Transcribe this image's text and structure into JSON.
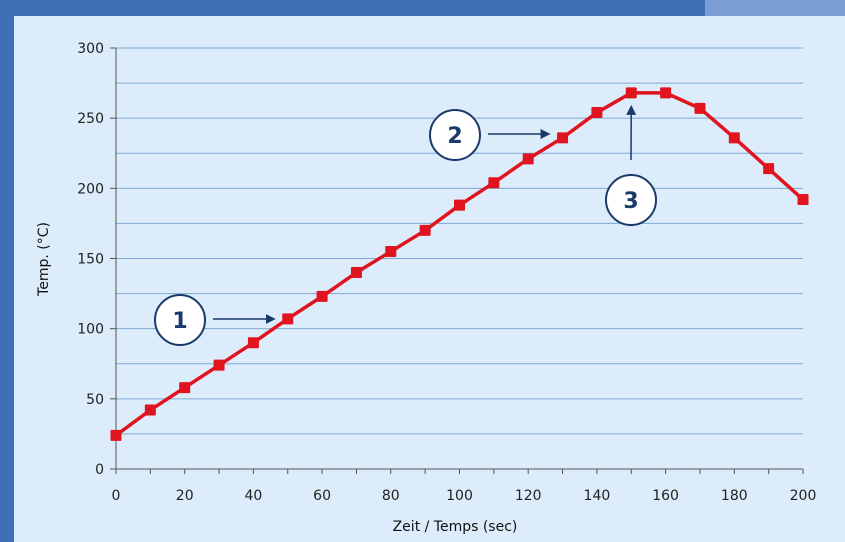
{
  "chart_data": {
    "type": "line",
    "title": "",
    "xlabel": "Zeit / Temps (sec)",
    "ylabel": "Temp. (°C)",
    "xlim": [
      0,
      200
    ],
    "ylim": [
      0,
      300
    ],
    "xticks": [
      0,
      20,
      40,
      60,
      80,
      100,
      120,
      140,
      160,
      180,
      200
    ],
    "yticks": [
      0,
      50,
      100,
      150,
      200,
      250,
      300
    ],
    "grid": true,
    "legend": "none",
    "series": [
      {
        "color": "#e0141e",
        "x": [
          0,
          10,
          20,
          30,
          40,
          50,
          60,
          70,
          80,
          90,
          100,
          110,
          120,
          130,
          140,
          150,
          160,
          170,
          180,
          190,
          200
        ],
        "y": [
          24,
          42,
          58,
          74,
          90,
          107,
          123,
          140,
          155,
          170,
          188,
          204,
          221,
          236,
          254,
          268,
          268,
          257,
          236,
          214,
          192
        ]
      }
    ],
    "annotations": [
      {
        "label": "1",
        "points_to": [
          50,
          107
        ]
      },
      {
        "label": "2",
        "points_to": [
          130,
          236
        ]
      },
      {
        "label": "3",
        "points_to": [
          150,
          268
        ]
      }
    ]
  },
  "colors": {
    "background": "#3f6fb5",
    "plot_bg": "#dcecfa",
    "grid": "#7fa8d8",
    "line": "#e0141e",
    "callout": "#1a3a6b"
  }
}
